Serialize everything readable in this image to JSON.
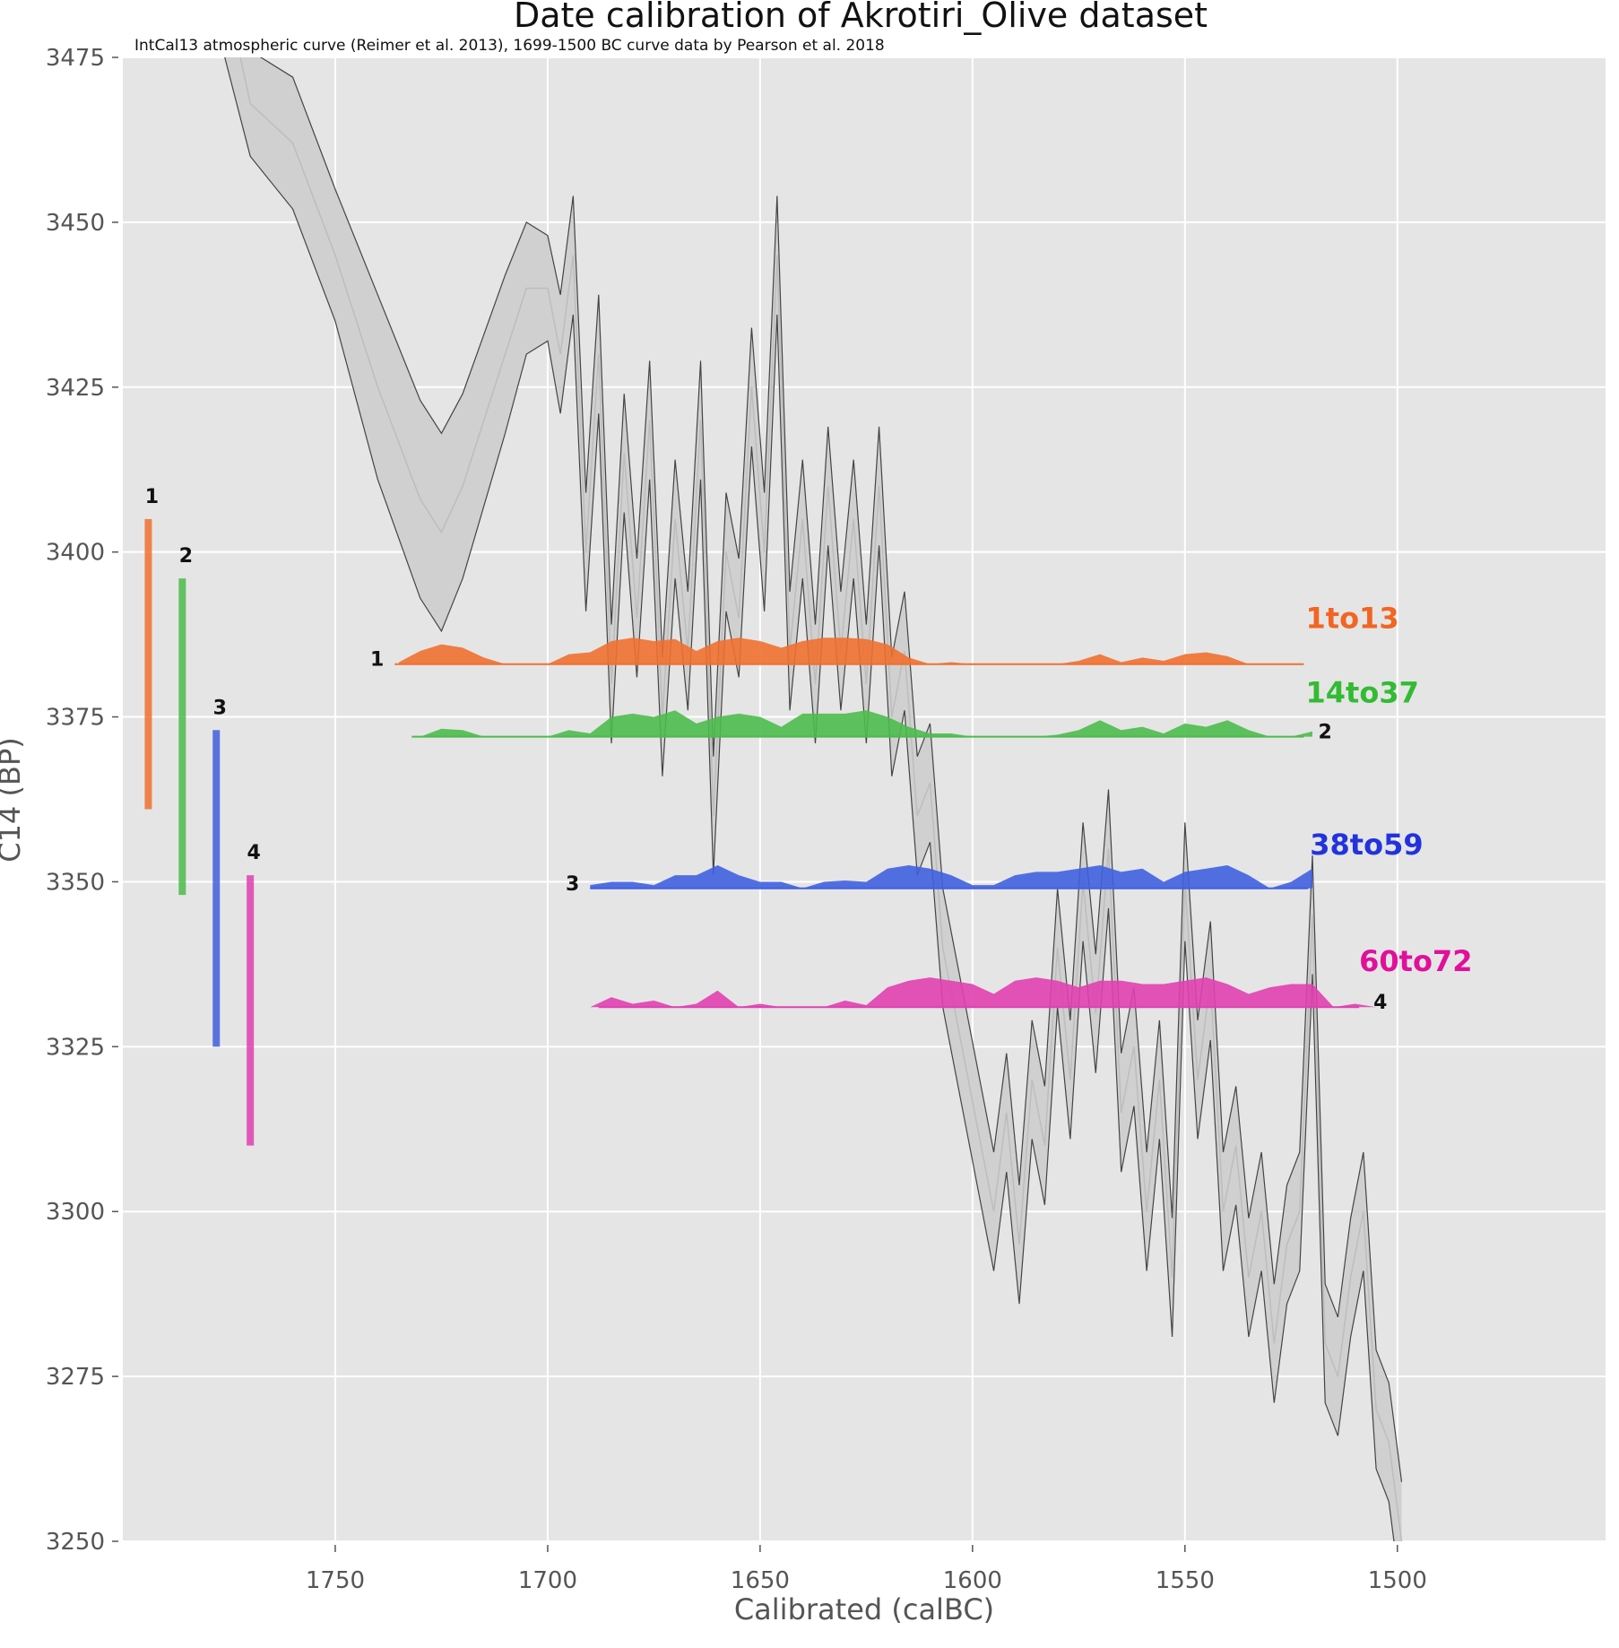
{
  "chart_data": {
    "type": "area",
    "title": "Date calibration of Akrotiri_Olive dataset",
    "subtitle": "IntCal13 atmospheric curve (Reimer et al. 2013), 1699-1500 BC curve data by Pearson et al. 2018",
    "xlabel": "Calibrated (calBC)",
    "ylabel": "C14 (BP)",
    "xlim": [
      1800,
      1451
    ],
    "ylim": [
      3250,
      3475
    ],
    "xticks": [
      1750,
      1700,
      1650,
      1600,
      1550,
      1500
    ],
    "yticks": [
      3250,
      3275,
      3300,
      3325,
      3350,
      3375,
      3400,
      3425,
      3450,
      3475
    ],
    "grid": true,
    "calibration_curve": {
      "columns": [
        "calBC",
        "c14_mean",
        "sigma"
      ],
      "points": [
        [
          1778,
          3492,
          12
        ],
        [
          1770,
          3468,
          8
        ],
        [
          1760,
          3462,
          10
        ],
        [
          1750,
          3445,
          10
        ],
        [
          1740,
          3425,
          14
        ],
        [
          1730,
          3408,
          15
        ],
        [
          1725,
          3403,
          15
        ],
        [
          1720,
          3410,
          14
        ],
        [
          1710,
          3430,
          12
        ],
        [
          1705,
          3440,
          10
        ],
        [
          1700,
          3440,
          8
        ],
        [
          1697,
          3430,
          9
        ],
        [
          1694,
          3445,
          9
        ],
        [
          1691,
          3400,
          9
        ],
        [
          1688,
          3430,
          9
        ],
        [
          1685,
          3380,
          9
        ],
        [
          1682,
          3415,
          9
        ],
        [
          1679,
          3390,
          9
        ],
        [
          1676,
          3420,
          9
        ],
        [
          1673,
          3375,
          9
        ],
        [
          1670,
          3405,
          9
        ],
        [
          1667,
          3385,
          9
        ],
        [
          1664,
          3420,
          9
        ],
        [
          1661,
          3360,
          9
        ],
        [
          1658,
          3400,
          9
        ],
        [
          1655,
          3390,
          9
        ],
        [
          1652,
          3425,
          9
        ],
        [
          1649,
          3400,
          9
        ],
        [
          1646,
          3445,
          9
        ],
        [
          1643,
          3385,
          9
        ],
        [
          1640,
          3405,
          9
        ],
        [
          1637,
          3380,
          9
        ],
        [
          1634,
          3410,
          9
        ],
        [
          1631,
          3385,
          9
        ],
        [
          1628,
          3405,
          9
        ],
        [
          1625,
          3380,
          9
        ],
        [
          1622,
          3410,
          9
        ],
        [
          1619,
          3375,
          9
        ],
        [
          1616,
          3385,
          9
        ],
        [
          1613,
          3360,
          9
        ],
        [
          1610,
          3365,
          9
        ],
        [
          1607,
          3340,
          9
        ],
        [
          1604,
          3330,
          9
        ],
        [
          1601,
          3320,
          9
        ],
        [
          1598,
          3310,
          9
        ],
        [
          1595,
          3300,
          9
        ],
        [
          1592,
          3315,
          9
        ],
        [
          1589,
          3295,
          9
        ],
        [
          1586,
          3320,
          9
        ],
        [
          1583,
          3310,
          9
        ],
        [
          1580,
          3340,
          9
        ],
        [
          1577,
          3320,
          9
        ],
        [
          1574,
          3350,
          9
        ],
        [
          1571,
          3330,
          9
        ],
        [
          1568,
          3355,
          9
        ],
        [
          1565,
          3315,
          9
        ],
        [
          1562,
          3325,
          9
        ],
        [
          1559,
          3300,
          9
        ],
        [
          1556,
          3320,
          9
        ],
        [
          1553,
          3290,
          9
        ],
        [
          1550,
          3350,
          9
        ],
        [
          1547,
          3320,
          9
        ],
        [
          1544,
          3335,
          9
        ],
        [
          1541,
          3300,
          9
        ],
        [
          1538,
          3310,
          9
        ],
        [
          1535,
          3290,
          9
        ],
        [
          1532,
          3300,
          9
        ],
        [
          1529,
          3280,
          9
        ],
        [
          1526,
          3295,
          9
        ],
        [
          1523,
          3300,
          9
        ],
        [
          1520,
          3345,
          9
        ],
        [
          1517,
          3280,
          9
        ],
        [
          1514,
          3275,
          9
        ],
        [
          1511,
          3290,
          9
        ],
        [
          1508,
          3300,
          9
        ],
        [
          1505,
          3270,
          9
        ],
        [
          1502,
          3265,
          9
        ],
        [
          1499,
          3250,
          9
        ]
      ]
    },
    "series": [
      {
        "id": "1",
        "name": "1to13",
        "color": "#f07030",
        "label_color": "#f26522",
        "c14_mean": 3383,
        "c14_range": [
          3361,
          3405
        ],
        "bar_x_calBC": 1794,
        "baseline_range_calBC": [
          1736,
          1522
        ],
        "density_start_calBC": 1735,
        "density_step": 5,
        "number_label_side": "left",
        "density": [
          0.3,
          2,
          3,
          2.5,
          1,
          0,
          0,
          0,
          1.5,
          1.8,
          3.5,
          4,
          3.5,
          3.8,
          2,
          3.5,
          4,
          3.5,
          2.5,
          3.5,
          4,
          4,
          3.8,
          3,
          1,
          0,
          0.3,
          0,
          0,
          0,
          0,
          0,
          0.5,
          1.5,
          0.3,
          1,
          0.5,
          1.5,
          1.8,
          1.2,
          0,
          0,
          0,
          0
        ]
      },
      {
        "id": "2",
        "name": "14to37",
        "color": "#4cbb4c",
        "label_color": "#33bb33",
        "c14_mean": 3372,
        "c14_range": [
          3348,
          3396
        ],
        "bar_x_calBC": 1786,
        "baseline_range_calBC": [
          1732,
          1522
        ],
        "density_start_calBC": 1735,
        "density_step": 5,
        "number_label_side": "right",
        "density": [
          0,
          0,
          1.2,
          1,
          0,
          0,
          0,
          0,
          1,
          0.5,
          3,
          3.5,
          3,
          4,
          2,
          3,
          3.5,
          3,
          1.5,
          3.5,
          3.5,
          3.5,
          4,
          3,
          1.5,
          0.5,
          0.5,
          0,
          0,
          0,
          0,
          0.3,
          1,
          2.5,
          1,
          1.5,
          0.5,
          2,
          1.5,
          2.5,
          1,
          0,
          0,
          0.8
        ]
      },
      {
        "id": "3",
        "name": "38to59",
        "color": "#4060e0",
        "label_color": "#2233dd",
        "c14_mean": 3349,
        "c14_range": [
          3325,
          3373
        ],
        "bar_x_calBC": 1778,
        "baseline_range_calBC": [
          1690,
          1521
        ],
        "density_start_calBC": 1690,
        "density_step": 5,
        "number_label_side": "left",
        "density": [
          0.5,
          1,
          1,
          0.5,
          2,
          2,
          3.5,
          2,
          1,
          1,
          0,
          1,
          1.2,
          1,
          3,
          3.5,
          3,
          2,
          0.5,
          0.5,
          2,
          2.5,
          2.5,
          3,
          3.5,
          2.5,
          3,
          1,
          2.5,
          3,
          3.5,
          2,
          0,
          1,
          3
        ]
      },
      {
        "id": "4",
        "name": "60to72",
        "color": "#e040b0",
        "label_color": "#e0109a",
        "c14_mean": 3331,
        "c14_range": [
          3310,
          3351
        ],
        "bar_x_calBC": 1770,
        "baseline_range_calBC": [
          1688,
          1509
        ],
        "density_start_calBC": 1690,
        "density_step": 5,
        "number_label_side": "right",
        "density": [
          0,
          1.5,
          0.5,
          1,
          0,
          0.5,
          2.5,
          0,
          0.5,
          0,
          0,
          0,
          1,
          0.3,
          3,
          4,
          4.5,
          4,
          3.5,
          2,
          4,
          4.5,
          4,
          3,
          4,
          4,
          3.5,
          3.5,
          4,
          4.5,
          3.5,
          2,
          3,
          3.5,
          3.5,
          0,
          0.5,
          0
        ]
      }
    ]
  }
}
